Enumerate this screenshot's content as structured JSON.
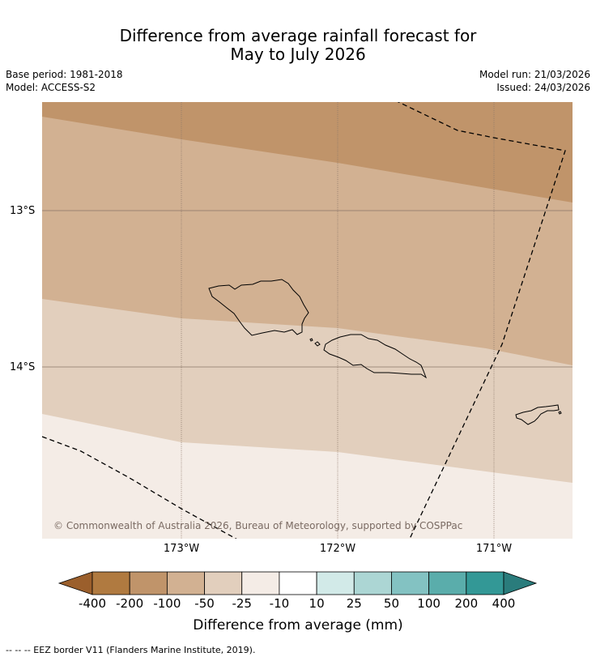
{
  "title": {
    "line1": "Difference from average rainfall forecast for",
    "line2": "May to July 2026"
  },
  "meta": {
    "base_period": "Base period: 1981-2018",
    "model": "Model: ACCESS-S2",
    "model_run": "Model run: 21/03/2026",
    "issued": "Issued: 24/03/2026"
  },
  "map": {
    "lat_labels": [
      "13°S",
      "14°S"
    ],
    "lon_labels": [
      "173°W",
      "172°W",
      "171°W"
    ],
    "copyright": "© Commonwealth of Australia 2026, Bureau of Meteorology, supported by COSPPac",
    "colors": {
      "band_-200": "#c0946a",
      "band_-100": "#d2b192",
      "band_-50": "#e2cfbd",
      "band_-25": "#f4ece6",
      "grid": "#8a7668",
      "coast": "#000000"
    }
  },
  "colorbar": {
    "ticks": [
      "-400",
      "-200",
      "-100",
      "-50",
      "-25",
      "-10",
      "10",
      "25",
      "50",
      "100",
      "200",
      "400"
    ],
    "colors": [
      "#9b5f2c",
      "#b07a40",
      "#c0946a",
      "#d2b192",
      "#e2cfbd",
      "#f4ece6",
      "#ffffff",
      "#d2eae8",
      "#acd6d4",
      "#83c2c2",
      "#5aadab",
      "#339896",
      "#2a7c7c"
    ],
    "title": "Difference from average (mm)"
  },
  "footnote": "--  --  -- EEZ border V11 (Flanders Marine Institute, 2019)."
}
